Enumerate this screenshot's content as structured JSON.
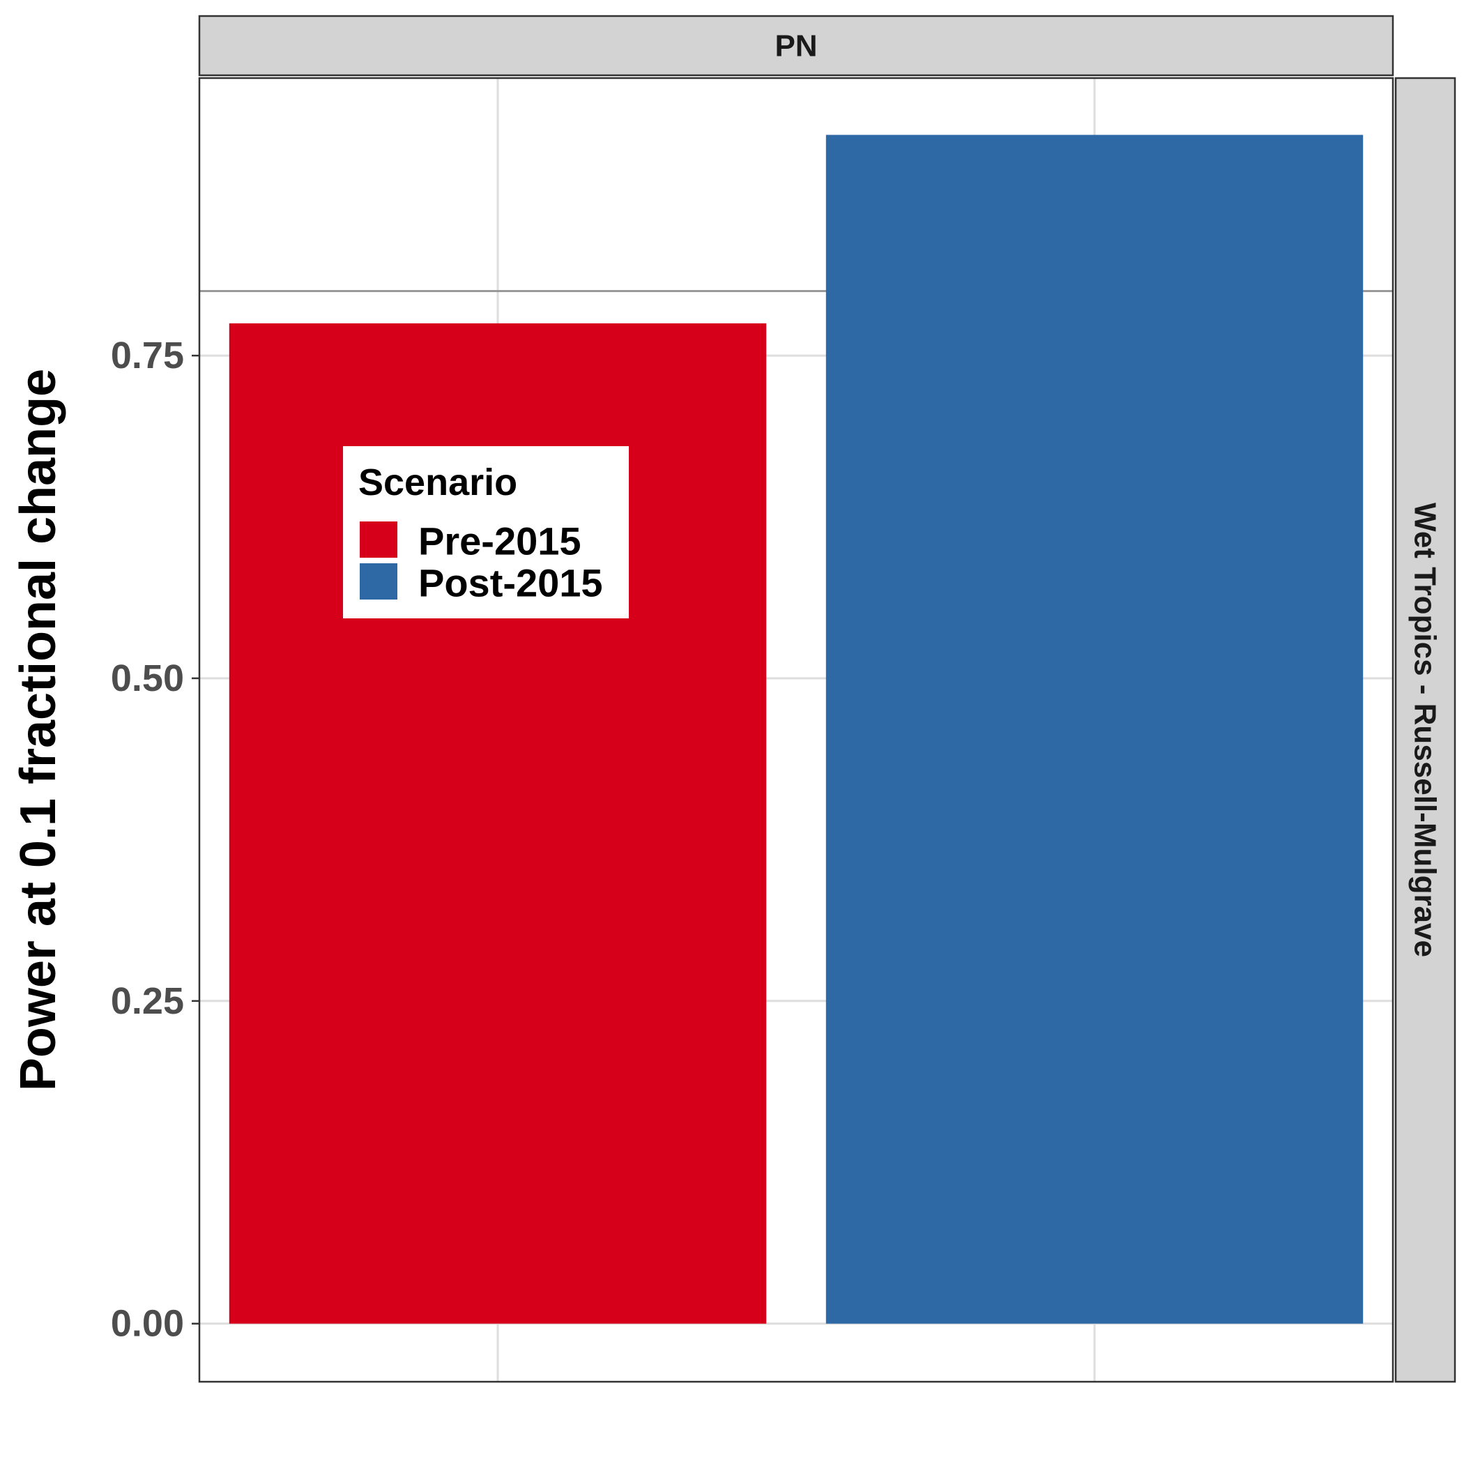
{
  "chart_data": {
    "type": "bar",
    "facet_top": "PN",
    "facet_right": "Wet Tropics - Russell-Mulgrave",
    "ylabel": "Power at 0.1 fractional change",
    "xlabel": "",
    "categories": [
      "Pre-2015",
      "Post-2015"
    ],
    "values": [
      0.775,
      0.921
    ],
    "colors": [
      "#d7001b",
      "#2e69a6"
    ],
    "ylim": [
      -0.045,
      0.965
    ],
    "yticks": [
      0.0,
      0.25,
      0.5,
      0.75
    ],
    "ytick_labels": [
      "0.00",
      "0.25",
      "0.50",
      "0.75"
    ],
    "reference_line": 0.8,
    "reference_line_color": "#999999",
    "grid": true,
    "legend": {
      "title": "Scenario",
      "entries": [
        {
          "label": "Pre-2015",
          "color": "#d7001b"
        },
        {
          "label": "Post-2015",
          "color": "#2e69a6"
        }
      ],
      "placement": "inside-top-left"
    }
  }
}
